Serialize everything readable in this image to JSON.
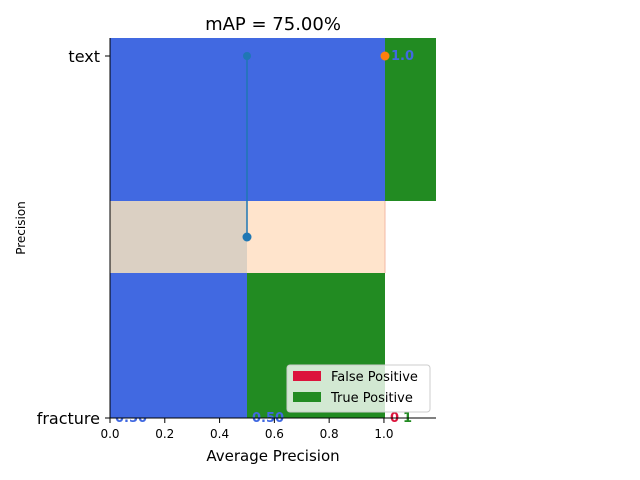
{
  "chart_data": {
    "type": "bar",
    "title": "mAP = 75.00%",
    "xlabel": "Average Precision",
    "ylabel": "Precision",
    "xlim": [
      0,
      1.19
    ],
    "x_ticks": [
      "0.0",
      "0.2",
      "0.4",
      "0.6",
      "0.8",
      "1.0"
    ],
    "categories": [
      "fracture",
      "text"
    ],
    "bars": {
      "text": {
        "blue": 1.0,
        "green_to": 1.19,
        "value_label": "1.0"
      },
      "fracture": {
        "blue": 0.5,
        "green_to": 1.0,
        "value_label": "0.50"
      },
      "mid_band": {
        "tan_to": 0.5,
        "peach_to": 1.0
      }
    },
    "precision_line": {
      "x": 0.5,
      "points": [
        1.0,
        0.5
      ]
    },
    "orange_point": {
      "x": 1.0,
      "y": "text"
    },
    "data_labels": [
      {
        "text": "1.0",
        "color": "#4169e1"
      },
      {
        "text": "0.50",
        "color": "#4169e1"
      },
      {
        "text": "0.50",
        "color": "#4169e1"
      },
      {
        "text": "0",
        "color": "#dc143c"
      },
      {
        "text": "1",
        "color": "#228b22"
      }
    ],
    "legend": {
      "placement": "lower-right",
      "entries": [
        {
          "label": "False Positive",
          "color": "#dc143c"
        },
        {
          "label": "True Positive",
          "color": "#228b22"
        }
      ]
    }
  }
}
